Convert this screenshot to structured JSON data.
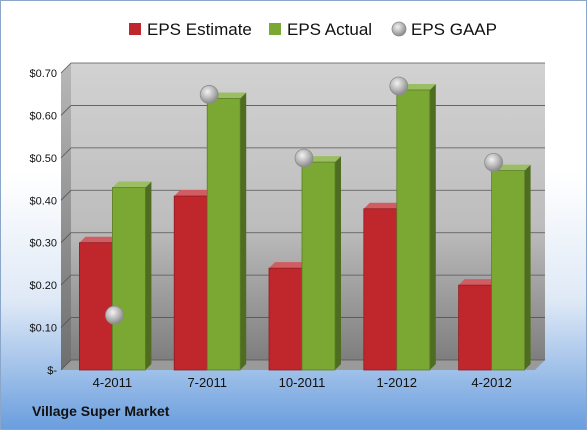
{
  "chart_data": {
    "type": "bar",
    "categories": [
      "4-2011",
      "7-2011",
      "10-2011",
      "1-2012",
      "4-2012"
    ],
    "series": [
      {
        "name": "EPS Estimate",
        "kind": "bar",
        "color": "#c0272d",
        "values": [
          0.3,
          0.41,
          0.24,
          0.38,
          0.2
        ]
      },
      {
        "name": "EPS Actual",
        "kind": "bar",
        "color": "#7aa832",
        "values": [
          0.43,
          0.64,
          0.49,
          0.66,
          0.47
        ]
      },
      {
        "name": "EPS GAAP",
        "kind": "marker",
        "color": "#b0b0b0",
        "values": [
          0.12,
          0.64,
          0.49,
          0.66,
          0.48
        ]
      }
    ],
    "yticks": [
      {
        "value": 0,
        "label": "$-"
      },
      {
        "value": 0.1,
        "label": "$0.10"
      },
      {
        "value": 0.2,
        "label": "$0.20"
      },
      {
        "value": 0.3,
        "label": "$0.30"
      },
      {
        "value": 0.4,
        "label": "$0.40"
      },
      {
        "value": 0.5,
        "label": "$0.50"
      },
      {
        "value": 0.6,
        "label": "$0.60"
      },
      {
        "value": 0.7,
        "label": "$0.70"
      }
    ],
    "ylim": [
      0,
      0.7
    ],
    "grid": true,
    "legend_position": "top"
  },
  "company_name": "Village Super Market"
}
